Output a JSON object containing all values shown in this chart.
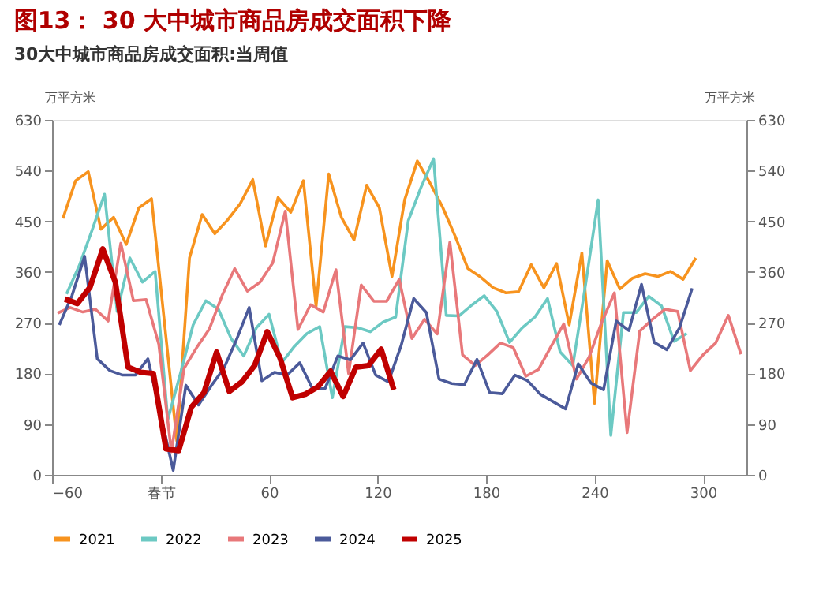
{
  "chart_data": {
    "type": "line",
    "title": "图13： 30 大中城市商品房成交面积下降",
    "subtitle": "30大中城市商品房成交面积:当周值",
    "ylabel": "万平方米",
    "y2label": "万平方米",
    "xlim": [
      -60,
      324
    ],
    "xticks": [
      -60,
      {
        "value": 0,
        "label": "春节"
      },
      60,
      120,
      180,
      240,
      300
    ],
    "ylim": [
      0,
      630
    ],
    "yticks": [
      0,
      90,
      180,
      270,
      360,
      450,
      540,
      630
    ],
    "y2lim": [
      0,
      630
    ],
    "y2ticks": [
      0,
      90,
      180,
      270,
      360,
      450,
      540,
      630
    ],
    "grid": false,
    "legend": "bottom",
    "marker": "none",
    "line_style": "solid",
    "series": [
      {
        "name": "2021",
        "color": "#f7931e",
        "x": [
          -54,
          -47,
          -40,
          -33,
          -26,
          -19,
          -12,
          -5,
          2,
          9,
          16,
          23,
          30,
          37,
          44,
          51,
          58,
          65,
          72,
          79,
          86,
          93,
          100,
          107,
          114,
          121,
          128,
          135,
          142,
          149,
          156,
          163,
          170,
          177,
          184,
          191,
          198,
          205,
          212,
          219,
          226,
          233,
          240,
          247,
          254,
          261,
          268,
          275,
          282,
          289,
          296
        ],
        "values": [
          455,
          522,
          538,
          436,
          457,
          409,
          474,
          490,
          275,
          60,
          385,
          462,
          428,
          452,
          481,
          524,
          406,
          492,
          466,
          522,
          299,
          534,
          457,
          417,
          514,
          474,
          352,
          488,
          557,
          518,
          475,
          423,
          366,
          351,
          332,
          323,
          325,
          373,
          332,
          375,
          266,
          394,
          127,
          380,
          330,
          349,
          357,
          352,
          361,
          347,
          385
        ]
      },
      {
        "name": "2022",
        "color": "#6cc9c3",
        "x": [
          -52,
          -45,
          -38,
          -31,
          -24,
          -17,
          -10,
          -3,
          4,
          11,
          18,
          25,
          32,
          39,
          46,
          53,
          60,
          67,
          74,
          81,
          88,
          95,
          102,
          109,
          116,
          123,
          130,
          137,
          144,
          151,
          158,
          165,
          172,
          179,
          186,
          193,
          200,
          207,
          214,
          221,
          228,
          235,
          242,
          249,
          256,
          263,
          270,
          277,
          284,
          291
        ],
        "values": [
          321,
          371,
          433,
          498,
          290,
          385,
          342,
          361,
          98,
          180,
          266,
          309,
          294,
          242,
          211,
          261,
          285,
          199,
          228,
          251,
          263,
          137,
          263,
          261,
          254,
          271,
          280,
          451,
          510,
          561,
          283,
          282,
          301,
          318,
          290,
          235,
          261,
          280,
          313,
          218,
          194,
          337,
          488,
          70,
          288,
          288,
          317,
          300,
          237,
          251
        ]
      },
      {
        "name": "2023",
        "color": "#e8787a",
        "x": [
          -57,
          -50,
          -43,
          -36,
          -29,
          -22,
          -15,
          -8,
          -1,
          6,
          13,
          20,
          27,
          34,
          41,
          48,
          55,
          62,
          69,
          76,
          83,
          90,
          97,
          104,
          111,
          118,
          125,
          132,
          139,
          146,
          153,
          160,
          167,
          174,
          181,
          188,
          195,
          202,
          209,
          216,
          223,
          230,
          237,
          244,
          251,
          258,
          265,
          272,
          279,
          286,
          293,
          300,
          307,
          314,
          321
        ],
        "values": [
          287,
          297,
          289,
          294,
          273,
          411,
          309,
          311,
          232,
          41,
          189,
          226,
          259,
          318,
          366,
          326,
          342,
          376,
          468,
          258,
          302,
          289,
          364,
          180,
          337,
          308,
          308,
          347,
          242,
          276,
          250,
          413,
          213,
          194,
          213,
          234,
          226,
          175,
          187,
          228,
          268,
          170,
          209,
          271,
          323,
          75,
          255,
          276,
          294,
          290,
          185,
          213,
          234,
          283,
          214
        ]
      },
      {
        "name": "2024",
        "color": "#4b5a9a",
        "x": [
          -56,
          -49,
          -42,
          -35,
          -28,
          -21,
          -14,
          -7,
          7,
          14,
          21,
          28,
          35,
          42,
          49,
          56,
          63,
          70,
          77,
          84,
          91,
          98,
          105,
          112,
          119,
          126,
          133,
          140,
          147,
          154,
          161,
          168,
          175,
          182,
          189,
          196,
          203,
          210,
          217,
          224,
          231,
          238,
          245,
          252,
          259,
          266,
          273,
          280,
          287,
          294
        ],
        "values": [
          266,
          318,
          388,
          206,
          185,
          177,
          177,
          206,
          8,
          159,
          124,
          158,
          189,
          240,
          297,
          167,
          182,
          177,
          199,
          153,
          153,
          211,
          204,
          234,
          177,
          165,
          229,
          313,
          288,
          170,
          162,
          160,
          205,
          146,
          144,
          177,
          167,
          143,
          130,
          117,
          197,
          163,
          151,
          273,
          256,
          338,
          235,
          222,
          261,
          331
        ]
      },
      {
        "name": "2025",
        "color": "#c00000",
        "x": [
          -53,
          -46,
          -39,
          -32,
          -25,
          -18,
          -11,
          -4,
          3,
          10,
          17,
          24,
          31,
          38,
          45,
          52,
          59,
          66,
          73,
          80,
          87,
          94,
          101,
          108,
          115,
          122,
          129
        ],
        "values": [
          312,
          304,
          333,
          401,
          342,
          191,
          182,
          180,
          46,
          43,
          120,
          146,
          218,
          148,
          165,
          194,
          254,
          208,
          137,
          143,
          156,
          184,
          139,
          191,
          194,
          223,
          151
        ]
      }
    ]
  }
}
